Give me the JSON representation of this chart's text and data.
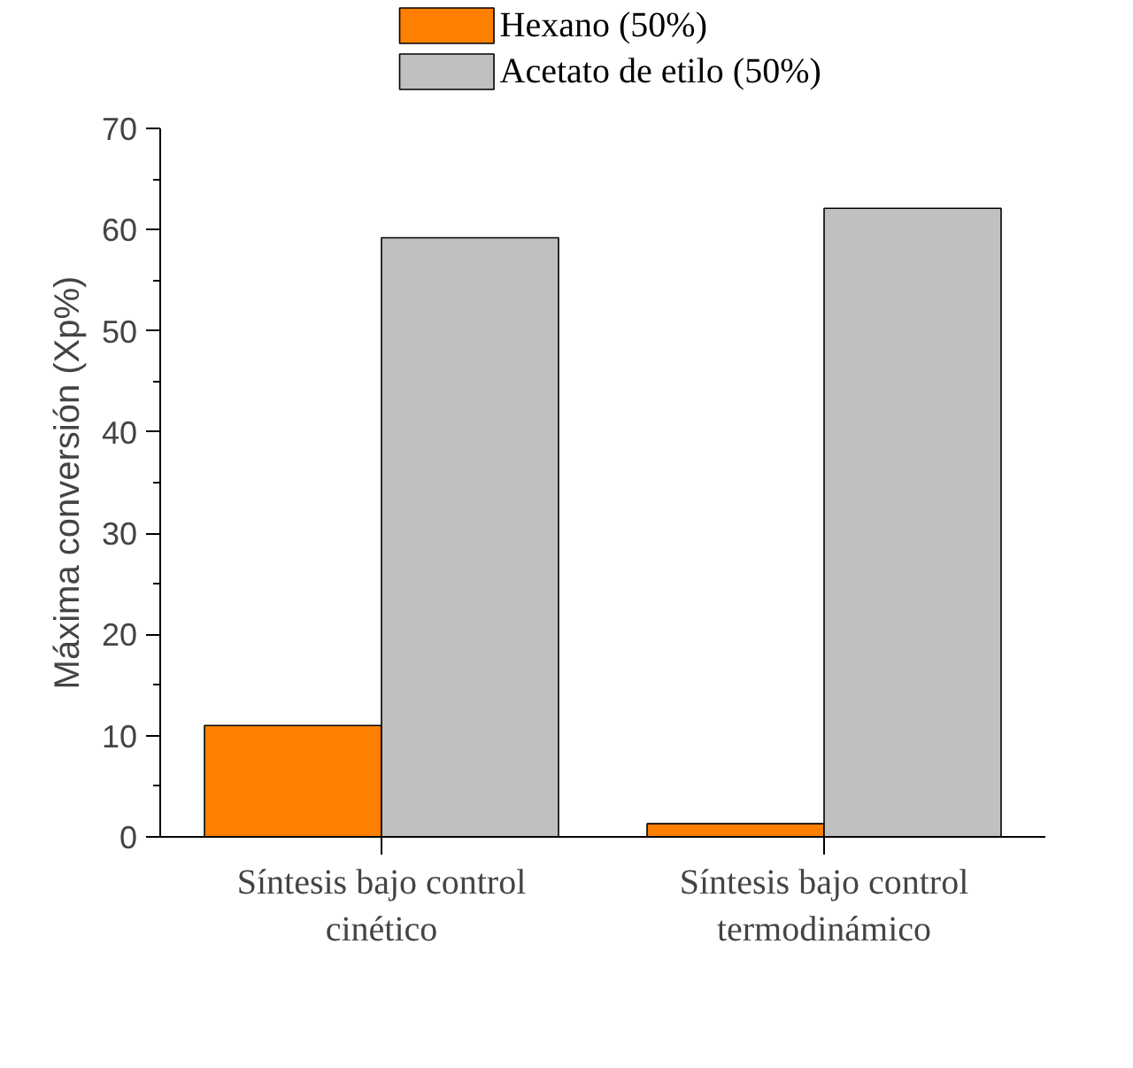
{
  "chart_data": {
    "type": "bar",
    "ylabel": "Máxima conversión (Xp%)",
    "categories": [
      "Síntesis bajo control cinético",
      "Síntesis bajo control termodinámico"
    ],
    "series": [
      {
        "name": "Hexano (50%)",
        "color": "#ff8000",
        "values": [
          11.0,
          1.3
        ]
      },
      {
        "name": "Acetato de etilo (50%)",
        "color": "#c0c0c0",
        "values": [
          59.2,
          62.1
        ]
      }
    ],
    "ylim": [
      0,
      70
    ],
    "yticks": [
      0,
      10,
      20,
      30,
      40,
      50,
      60,
      70
    ],
    "grid": false,
    "legend": "top"
  }
}
